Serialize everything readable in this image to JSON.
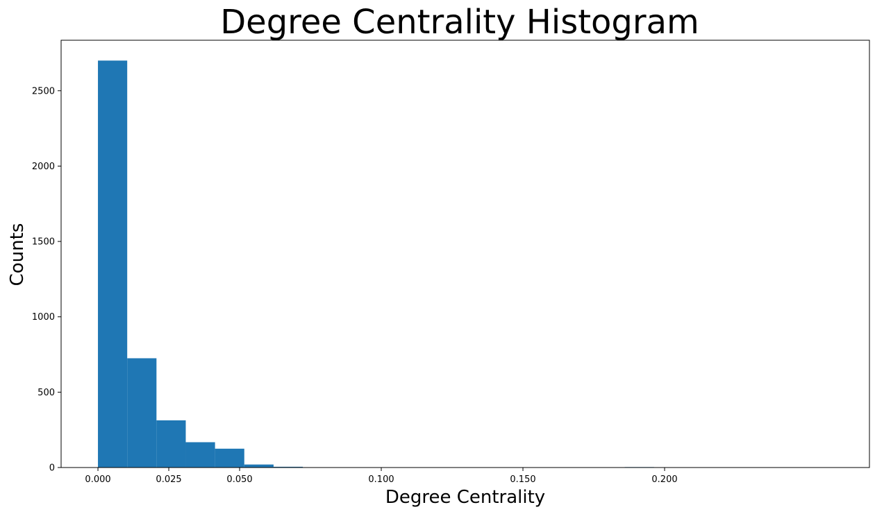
{
  "chart_data": {
    "type": "bar",
    "title": "Degree Centrality Histogram",
    "xlabel": "Degree Centrality",
    "ylabel": "Counts",
    "bin_width": 0.01033,
    "bins": [
      {
        "x0": 0.0,
        "count": 2700
      },
      {
        "x0": 0.01033,
        "count": 725
      },
      {
        "x0": 0.02066,
        "count": 313
      },
      {
        "x0": 0.03099,
        "count": 168
      },
      {
        "x0": 0.04132,
        "count": 125
      },
      {
        "x0": 0.05165,
        "count": 20
      },
      {
        "x0": 0.06198,
        "count": 5
      },
      {
        "x0": 0.18594,
        "count": 3
      }
    ],
    "xlim": [
      -0.013,
      0.2723
    ],
    "ylim": [
      0,
      2835
    ],
    "xticks": [
      0.0,
      0.025,
      0.05,
      0.1,
      0.15,
      0.2
    ],
    "xtick_labels": [
      "0.000",
      "0.025",
      "0.050",
      "0.100",
      "0.150",
      "0.200"
    ],
    "yticks": [
      0,
      500,
      1000,
      1500,
      2000,
      2500
    ],
    "ytick_labels": [
      "0",
      "500",
      "1000",
      "1500",
      "2000",
      "2500"
    ],
    "bar_color": "#1f77b4",
    "grid": false,
    "legend": "none"
  }
}
